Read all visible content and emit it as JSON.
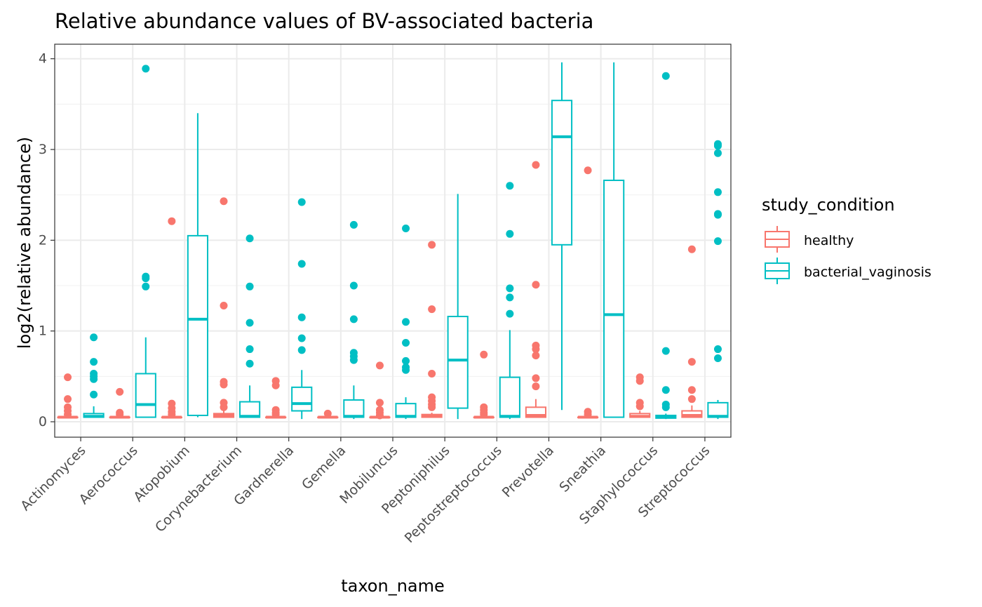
{
  "chart_data": {
    "type": "boxplot",
    "title": "Relative abundance values of BV-associated bacteria",
    "xlabel": "taxon_name",
    "ylabel": "log2(relative abundance)",
    "ylim": [
      -0.17,
      4.16
    ],
    "yticks": [
      0,
      1,
      2,
      3,
      4
    ],
    "grid": true,
    "legend": {
      "title": "study_condition",
      "placement": "right",
      "entries": [
        "healthy",
        "bacterial_vaginosis"
      ]
    },
    "colors": {
      "healthy": "#F8766D",
      "bacterial_vaginosis": "#00BFC4"
    },
    "categories": [
      "Actinomyces",
      "Aerococcus",
      "Atopobium",
      "Corynebacterium",
      "Gardnerella",
      "Gemella",
      "Mobiluncus",
      "Peptoniphilus",
      "Peptostreptococcus",
      "Prevotella",
      "Sneathia",
      "Staphylococcus",
      "Streptococcus"
    ],
    "series": [
      {
        "name": "healthy",
        "boxes": [
          {
            "q1": 0.05,
            "median": 0.05,
            "q3": 0.05,
            "low": 0.05,
            "high": 0.05,
            "outliers": [
              0.49,
              0.25,
              0.16,
              0.12,
              0.08
            ]
          },
          {
            "q1": 0.05,
            "median": 0.05,
            "q3": 0.05,
            "low": 0.05,
            "high": 0.05,
            "outliers": [
              0.33,
              0.1,
              0.08
            ]
          },
          {
            "q1": 0.05,
            "median": 0.05,
            "q3": 0.05,
            "low": 0.05,
            "high": 0.05,
            "outliers": [
              2.21,
              0.2,
              0.15,
              0.11,
              0.08
            ]
          },
          {
            "q1": 0.05,
            "median": 0.07,
            "q3": 0.09,
            "low": 0.05,
            "high": 0.12,
            "outliers": [
              2.43,
              1.28,
              0.44,
              0.41,
              0.21,
              0.16
            ]
          },
          {
            "q1": 0.05,
            "median": 0.05,
            "q3": 0.05,
            "low": 0.05,
            "high": 0.05,
            "outliers": [
              0.45,
              0.4,
              0.13,
              0.1,
              0.08
            ]
          },
          {
            "q1": 0.05,
            "median": 0.05,
            "q3": 0.05,
            "low": 0.05,
            "high": 0.05,
            "outliers": [
              0.09
            ]
          },
          {
            "q1": 0.05,
            "median": 0.05,
            "q3": 0.05,
            "low": 0.05,
            "high": 0.05,
            "outliers": [
              0.62,
              0.21,
              0.13,
              0.1,
              0.07
            ]
          },
          {
            "q1": 0.05,
            "median": 0.06,
            "q3": 0.08,
            "low": 0.05,
            "high": 0.1,
            "outliers": [
              1.95,
              1.24,
              0.53,
              0.27,
              0.23,
              0.19,
              0.16
            ]
          },
          {
            "q1": 0.05,
            "median": 0.05,
            "q3": 0.05,
            "low": 0.05,
            "high": 0.05,
            "outliers": [
              0.74,
              0.16,
              0.13,
              0.1,
              0.08
            ]
          },
          {
            "q1": 0.05,
            "median": 0.07,
            "q3": 0.16,
            "low": 0.05,
            "high": 0.25,
            "outliers": [
              2.83,
              1.51,
              0.84,
              0.8,
              0.73,
              0.48,
              0.39
            ]
          },
          {
            "q1": 0.05,
            "median": 0.05,
            "q3": 0.05,
            "low": 0.05,
            "high": 0.05,
            "outliers": [
              2.77,
              0.11,
              0.08
            ]
          },
          {
            "q1": 0.05,
            "median": 0.06,
            "q3": 0.09,
            "low": 0.05,
            "high": 0.12,
            "outliers": [
              0.49,
              0.45,
              0.21,
              0.17
            ]
          },
          {
            "q1": 0.05,
            "median": 0.07,
            "q3": 0.12,
            "low": 0.05,
            "high": 0.18,
            "outliers": [
              1.9,
              0.66,
              0.35,
              0.25
            ]
          }
        ]
      },
      {
        "name": "bacterial_vaginosis",
        "boxes": [
          {
            "q1": 0.05,
            "median": 0.06,
            "q3": 0.09,
            "low": 0.05,
            "high": 0.17,
            "outliers": [
              0.93,
              0.66,
              0.53,
              0.5,
              0.47,
              0.3
            ]
          },
          {
            "q1": 0.05,
            "median": 0.19,
            "q3": 0.53,
            "low": 0.05,
            "high": 0.93,
            "outliers": [
              3.89,
              1.6,
              1.58,
              1.49
            ]
          },
          {
            "q1": 0.07,
            "median": 1.13,
            "q3": 2.05,
            "low": 0.05,
            "high": 3.4,
            "outliers": []
          },
          {
            "q1": 0.05,
            "median": 0.06,
            "q3": 0.22,
            "low": 0.05,
            "high": 0.4,
            "outliers": [
              2.02,
              1.49,
              1.09,
              0.8,
              0.64
            ]
          },
          {
            "q1": 0.12,
            "median": 0.2,
            "q3": 0.38,
            "low": 0.03,
            "high": 0.57,
            "outliers": [
              2.42,
              1.74,
              1.15,
              0.92,
              0.79
            ]
          },
          {
            "q1": 0.05,
            "median": 0.06,
            "q3": 0.24,
            "low": 0.03,
            "high": 0.4,
            "outliers": [
              2.17,
              1.5,
              1.13,
              0.76,
              0.72,
              0.68
            ]
          },
          {
            "q1": 0.05,
            "median": 0.06,
            "q3": 0.2,
            "low": 0.03,
            "high": 0.27,
            "outliers": [
              2.13,
              1.1,
              0.87,
              0.67,
              0.6,
              0.57
            ]
          },
          {
            "q1": 0.15,
            "median": 0.68,
            "q3": 1.16,
            "low": 0.03,
            "high": 2.51,
            "outliers": []
          },
          {
            "q1": 0.05,
            "median": 0.06,
            "q3": 0.49,
            "low": 0.03,
            "high": 1.01,
            "outliers": [
              2.6,
              2.07,
              1.47,
              1.37,
              1.19
            ]
          },
          {
            "q1": 1.95,
            "median": 3.14,
            "q3": 3.54,
            "low": 0.13,
            "high": 3.96,
            "outliers": []
          },
          {
            "q1": 0.05,
            "median": 1.18,
            "q3": 2.66,
            "low": 0.05,
            "high": 3.96,
            "outliers": []
          },
          {
            "q1": 0.04,
            "median": 0.05,
            "q3": 0.07,
            "low": 0.03,
            "high": 0.09,
            "outliers": [
              3.81,
              0.78,
              0.35,
              0.19,
              0.16
            ]
          },
          {
            "q1": 0.05,
            "median": 0.06,
            "q3": 0.21,
            "low": 0.03,
            "high": 0.24,
            "outliers": [
              3.06,
              3.04,
              2.96,
              2.53,
              2.29,
              2.28,
              1.99,
              0.8,
              0.7
            ]
          }
        ]
      }
    ]
  }
}
